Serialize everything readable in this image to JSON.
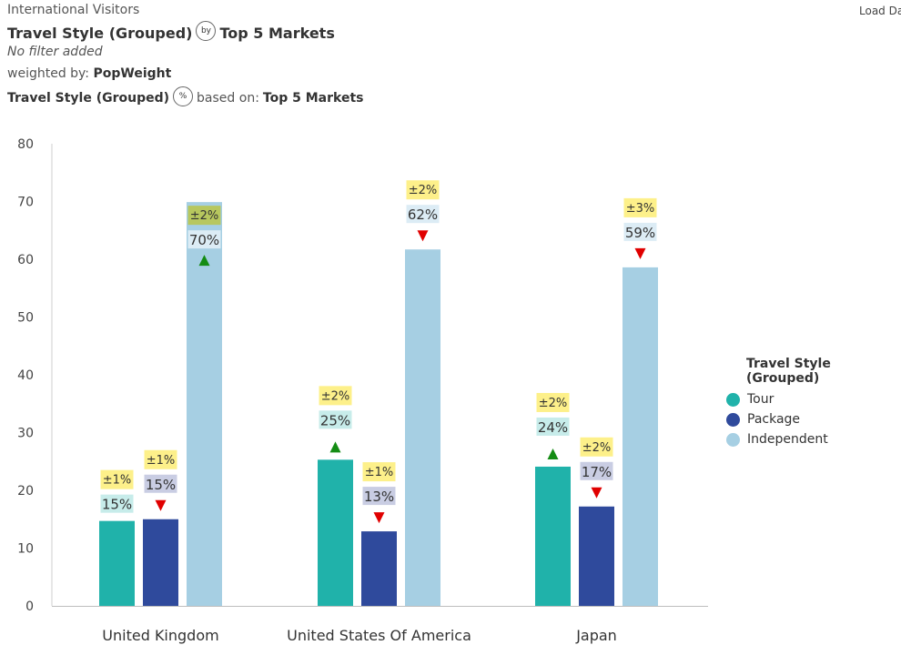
{
  "header": {
    "app_title": "International Visitors",
    "load_data": "Load Da",
    "headline_left": "Travel Style (Grouped)",
    "by_icon_label": "by",
    "headline_right": "Top 5 Markets",
    "filter_text": "No filter added",
    "weighted_prefix": "weighted by:",
    "weighted_value": "PopWeight",
    "pct_left": "Travel Style (Grouped)",
    "pct_icon_label": "%",
    "based_prefix": "based on:",
    "based_value": "Top 5 Markets"
  },
  "colors": {
    "Tour": "#20b2aa",
    "Package": "#2f4a9c",
    "Independent": "#a6cfe3",
    "error_bg": "#fdf08a",
    "up_arrow": "#148c14",
    "down_arrow": "#e00000"
  },
  "chart_data": {
    "type": "bar",
    "categories": [
      "United Kingdom",
      "United States Of America",
      "Japan"
    ],
    "ylim": [
      0,
      80
    ],
    "yticks": [
      0,
      10,
      20,
      30,
      40,
      50,
      60,
      70,
      80
    ],
    "legend_title": "Travel Style (Grouped)",
    "legend_position": "right",
    "series": [
      {
        "name": "Tour",
        "values": [
          14.7,
          25.3,
          24.1
        ],
        "labels": [
          "15%",
          "25%",
          "24%"
        ],
        "errors": [
          "±1%",
          "±2%",
          "±2%"
        ],
        "arrows": [
          "none",
          "up",
          "up"
        ]
      },
      {
        "name": "Package",
        "values": [
          15.0,
          12.9,
          17.2
        ],
        "labels": [
          "15%",
          "13%",
          "17%"
        ],
        "errors": [
          "±1%",
          "±1%",
          "±2%"
        ],
        "arrows": [
          "down",
          "down",
          "down"
        ]
      },
      {
        "name": "Independent",
        "values": [
          69.9,
          61.7,
          58.6
        ],
        "labels": [
          "70%",
          "62%",
          "59%"
        ],
        "errors": [
          "±2%",
          "±2%",
          "±3%"
        ],
        "arrows": [
          "up",
          "down",
          "down"
        ]
      }
    ]
  }
}
